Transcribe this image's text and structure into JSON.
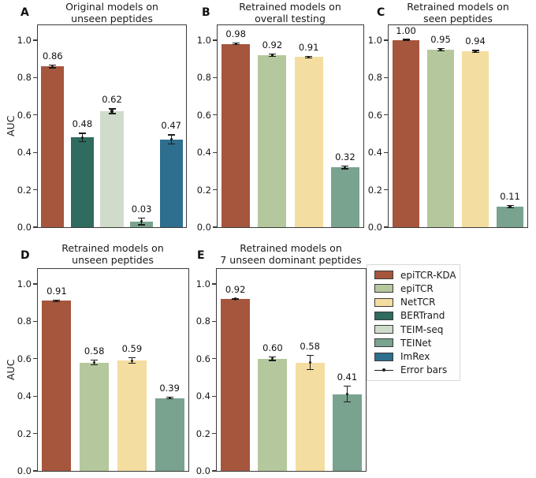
{
  "palette": {
    "epiTCR-KDA": "#a5563d",
    "epiTCR": "#b5c89d",
    "NetTCR": "#f4dda0",
    "BERTrand": "#2f6b5e",
    "TEIM-seq": "#cfdccb",
    "TEINet": "#79a38f",
    "ImRex": "#2e6e8e"
  },
  "error_color": "#1c1c1c",
  "chart_data": [
    {
      "type": "bar",
      "panel": "A",
      "title_lines": [
        "Original models on",
        "unseen peptides"
      ],
      "ylabel": "AUC",
      "categories": [
        "epiTCR-KDA",
        "BERTrand",
        "TEIM-seq",
        "TEINet",
        "ImRex"
      ],
      "values": [
        0.86,
        0.48,
        0.62,
        0.03,
        0.47
      ],
      "value_labels": [
        "0.86",
        "0.48",
        "0.62",
        "0.03",
        "0.47"
      ],
      "errors": [
        0.01,
        0.025,
        0.015,
        0.02,
        0.026
      ],
      "ylim": [
        0,
        1.08
      ],
      "yticks": [
        0.0,
        0.2,
        0.4,
        0.6,
        0.8,
        1.0
      ],
      "ytick_labels": [
        "0.0",
        "0.2",
        "0.4",
        "0.6",
        "0.8",
        "1.0"
      ]
    },
    {
      "type": "bar",
      "panel": "B",
      "title_lines": [
        "Retrained models on",
        "overall testing"
      ],
      "ylabel": "",
      "categories": [
        "epiTCR-KDA",
        "epiTCR",
        "NetTCR",
        "TEINet"
      ],
      "values": [
        0.98,
        0.92,
        0.91,
        0.32
      ],
      "value_labels": [
        "0.98",
        "0.92",
        "0.91",
        "0.32"
      ],
      "errors": [
        0.006,
        0.008,
        0.006,
        0.01
      ],
      "ylim": [
        0,
        1.08
      ],
      "yticks": [
        0.0,
        0.2,
        0.4,
        0.6,
        0.8,
        1.0
      ],
      "ytick_labels": [
        "0.0",
        "0.2",
        "0.4",
        "0.6",
        "0.8",
        "1.0"
      ]
    },
    {
      "type": "bar",
      "panel": "C",
      "title_lines": [
        "Retrained models on",
        "seen peptides"
      ],
      "ylabel": "",
      "categories": [
        "epiTCR-KDA",
        "epiTCR",
        "NetTCR",
        "TEINet"
      ],
      "values": [
        1.0,
        0.95,
        0.94,
        0.11
      ],
      "value_labels": [
        "1.00",
        "0.95",
        "0.94",
        "0.11"
      ],
      "errors": [
        0.004,
        0.008,
        0.008,
        0.008
      ],
      "ylim": [
        0,
        1.08
      ],
      "yticks": [
        0.0,
        0.2,
        0.4,
        0.6,
        0.8,
        1.0
      ],
      "ytick_labels": [
        "0.0",
        "0.2",
        "0.4",
        "0.6",
        "0.8",
        "1.0"
      ]
    },
    {
      "type": "bar",
      "panel": "D",
      "title_lines": [
        "Retrained models on",
        "unseen peptides"
      ],
      "ylabel": "AUC",
      "categories": [
        "epiTCR-KDA",
        "epiTCR",
        "NetTCR",
        "TEINet"
      ],
      "values": [
        0.91,
        0.58,
        0.59,
        0.39
      ],
      "value_labels": [
        "0.91",
        "0.58",
        "0.59",
        "0.39"
      ],
      "errors": [
        0.006,
        0.015,
        0.018,
        0.008
      ],
      "ylim": [
        0,
        1.08
      ],
      "yticks": [
        0.0,
        0.2,
        0.4,
        0.6,
        0.8,
        1.0
      ],
      "ytick_labels": [
        "0.0",
        "0.2",
        "0.4",
        "0.6",
        "0.8",
        "1.0"
      ]
    },
    {
      "type": "bar",
      "panel": "E",
      "title_lines": [
        "Retrained models on",
        "7 unseen dominant peptides"
      ],
      "ylabel": "",
      "categories": [
        "epiTCR-KDA",
        "epiTCR",
        "NetTCR",
        "TEINet"
      ],
      "values": [
        0.92,
        0.6,
        0.58,
        0.41
      ],
      "value_labels": [
        "0.92",
        "0.60",
        "0.58",
        "0.41"
      ],
      "errors": [
        0.006,
        0.012,
        0.042,
        0.045
      ],
      "ylim": [
        0,
        1.08
      ],
      "yticks": [
        0.0,
        0.2,
        0.4,
        0.6,
        0.8,
        1.0
      ],
      "ytick_labels": [
        "0.0",
        "0.2",
        "0.4",
        "0.6",
        "0.8",
        "1.0"
      ]
    }
  ],
  "legend": {
    "items": [
      {
        "label": "epiTCR-KDA",
        "color": "#a5563d"
      },
      {
        "label": "epiTCR",
        "color": "#b5c89d"
      },
      {
        "label": "NetTCR",
        "color": "#f4dda0"
      },
      {
        "label": "BERTrand",
        "color": "#2f6b5e"
      },
      {
        "label": "TEIM-seq",
        "color": "#cfdccb"
      },
      {
        "label": "TEINet",
        "color": "#79a38f"
      },
      {
        "label": "ImRex",
        "color": "#2e6e8e"
      }
    ],
    "error_item_label": "Error bars"
  }
}
